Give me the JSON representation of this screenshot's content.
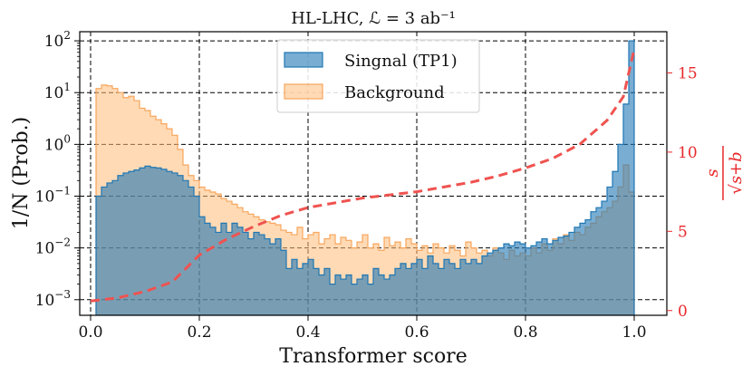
{
  "chart_data": {
    "type": "histogram",
    "title": "HL-LHC, ℒ = 3 ab⁻¹",
    "xlabel": "Transformer score",
    "ylabel": "1/N (Prob.)",
    "ylabel_right": "s/√(s+b)",
    "ylabel_right_num": "s",
    "ylabel_right_den": "√s+b",
    "xlim": [
      -0.02,
      1.06
    ],
    "ylim": [
      0.0005,
      150
    ],
    "yscale": "log",
    "ylim_right": [
      -0.3,
      17.6
    ],
    "xticks": [
      0.0,
      0.2,
      0.4,
      0.6,
      0.8,
      1.0
    ],
    "xtick_labels": [
      "0.0",
      "0.2",
      "0.4",
      "0.6",
      "0.8",
      "1.0"
    ],
    "yticks": [
      0.001,
      0.01,
      0.1,
      1,
      10,
      100
    ],
    "ytick_labels": [
      {
        "base": "10",
        "exp": "−3"
      },
      {
        "base": "10",
        "exp": "−2"
      },
      {
        "base": "10",
        "exp": "−1"
      },
      {
        "base": "10",
        "exp": "0"
      },
      {
        "base": "10",
        "exp": "1"
      },
      {
        "base": "10",
        "exp": "2"
      }
    ],
    "yticks_right": [
      0,
      5,
      10,
      15
    ],
    "ytick_right_labels": [
      "0",
      "5",
      "10",
      "15"
    ],
    "grid": true,
    "legend_position": "top-center",
    "bins": {
      "start": 0.01,
      "width": 0.01,
      "count": 99
    },
    "series": [
      {
        "name": "Background",
        "kind": "step-fill",
        "color": "#ffbb78",
        "edge_color": "#f8a65c",
        "values": [
          12.0,
          14.0,
          13.5,
          12.0,
          10.0,
          8.0,
          8.5,
          7.0,
          5.0,
          4.5,
          3.5,
          3.0,
          2.5,
          2.0,
          1.5,
          0.8,
          0.4,
          0.25,
          0.2,
          0.15,
          0.13,
          0.12,
          0.11,
          0.09,
          0.08,
          0.07,
          0.06,
          0.05,
          0.045,
          0.04,
          0.035,
          0.032,
          0.03,
          0.028,
          0.022,
          0.02,
          0.018,
          0.025,
          0.015,
          0.018,
          0.02,
          0.012,
          0.015,
          0.018,
          0.012,
          0.016,
          0.014,
          0.01,
          0.013,
          0.018,
          0.01,
          0.012,
          0.009,
          0.016,
          0.011,
          0.013,
          0.01,
          0.015,
          0.012,
          0.009,
          0.011,
          0.008,
          0.012,
          0.01,
          0.008,
          0.011,
          0.009,
          0.007,
          0.013,
          0.01,
          0.008,
          0.009,
          0.007,
          0.01,
          0.008,
          0.006,
          0.009,
          0.007,
          0.008,
          0.007,
          0.01,
          0.008,
          0.012,
          0.009,
          0.015,
          0.012,
          0.018,
          0.014,
          0.02,
          0.018,
          0.025,
          0.03,
          0.04,
          0.05,
          0.06,
          0.08,
          0.15,
          0.4,
          0.12
        ]
      },
      {
        "name": "Singnal (TP1)",
        "kind": "step-fill",
        "color": "#1f77b4",
        "edge_color": "#1f77b4",
        "values": [
          0.1,
          0.15,
          0.18,
          0.2,
          0.25,
          0.28,
          0.3,
          0.32,
          0.35,
          0.38,
          0.36,
          0.35,
          0.33,
          0.3,
          0.28,
          0.25,
          0.2,
          0.15,
          0.1,
          0.04,
          0.03,
          0.025,
          0.02,
          0.03,
          0.02,
          0.03,
          0.025,
          0.02,
          0.015,
          0.02,
          0.018,
          0.015,
          0.012,
          0.015,
          0.009,
          0.004,
          0.006,
          0.004,
          0.005,
          0.006,
          0.004,
          0.003,
          0.004,
          0.002,
          0.003,
          0.0025,
          0.003,
          0.002,
          0.0025,
          0.003,
          0.002,
          0.004,
          0.003,
          0.0025,
          0.003,
          0.004,
          0.005,
          0.004,
          0.005,
          0.006,
          0.004,
          0.007,
          0.005,
          0.004,
          0.006,
          0.005,
          0.004,
          0.006,
          0.005,
          0.006,
          0.005,
          0.007,
          0.008,
          0.009,
          0.01,
          0.012,
          0.011,
          0.013,
          0.012,
          0.01,
          0.011,
          0.013,
          0.015,
          0.012,
          0.014,
          0.016,
          0.017,
          0.02,
          0.025,
          0.03,
          0.035,
          0.05,
          0.06,
          0.08,
          0.15,
          0.3,
          1.0,
          6.0,
          100.0
        ]
      },
      {
        "name": "s/√(s+b)",
        "kind": "line",
        "axis": "right",
        "color": "#ef5350",
        "dash": true,
        "x": [
          0.0,
          0.05,
          0.1,
          0.15,
          0.2,
          0.25,
          0.3,
          0.35,
          0.4,
          0.45,
          0.5,
          0.55,
          0.6,
          0.65,
          0.7,
          0.75,
          0.8,
          0.85,
          0.9,
          0.95,
          0.98,
          1.0
        ],
        "y": [
          0.6,
          0.8,
          1.2,
          1.8,
          3.5,
          4.5,
          5.3,
          6.0,
          6.5,
          6.8,
          7.1,
          7.3,
          7.5,
          7.8,
          8.1,
          8.5,
          9.0,
          9.6,
          10.5,
          12.0,
          13.5,
          16.5
        ]
      }
    ]
  }
}
